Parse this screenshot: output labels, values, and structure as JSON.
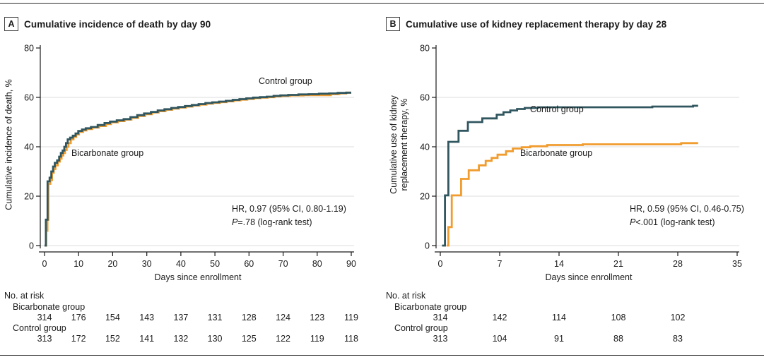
{
  "figure": {
    "colors": {
      "teal": "#30565F",
      "orange": "#F09C2E",
      "grid": "#DCDCDC",
      "axis": "#1a1a1a",
      "text": "#1a1a1a"
    }
  },
  "chart_data": [
    {
      "type": "line",
      "step": true,
      "panel_letter": "A",
      "title": "Cumulative incidence of death by day 90",
      "xlabel": "Days since enrollment",
      "ylabel": "Cumulative incidence of death, %",
      "ylabel_lines": [
        "Cumulative incidence of death, %"
      ],
      "xlim": [
        0,
        90
      ],
      "ylim": [
        0,
        80
      ],
      "xticks": [
        0,
        10,
        20,
        30,
        40,
        50,
        60,
        70,
        80,
        90
      ],
      "yticks": [
        0,
        20,
        40,
        60,
        80
      ],
      "grid_y": [
        0,
        20,
        40,
        60
      ],
      "legend_position": "inline-labels",
      "x_end": 90,
      "annotation": {
        "hr": "HR, 0.97 (95% CI, 0.80-1.19)",
        "p_italic": "P",
        "p_rest": "=.78 (log-rank test)"
      },
      "series": [
        {
          "name": "Bicarbonate group",
          "color_key": "orange",
          "points": [
            [
              0,
              0
            ],
            [
              0.5,
              6
            ],
            [
              0.85,
              10.5
            ],
            [
              1.15,
              25
            ],
            [
              1.7,
              26.5
            ],
            [
              2.2,
              29.5
            ],
            [
              2.7,
              31
            ],
            [
              3.2,
              32.5
            ],
            [
              3.9,
              34
            ],
            [
              4.5,
              35.2
            ],
            [
              5,
              36.5
            ],
            [
              5.5,
              37.5
            ],
            [
              6,
              38.7
            ],
            [
              6.5,
              40
            ],
            [
              7,
              41.5
            ],
            [
              7.7,
              43
            ],
            [
              8.5,
              44
            ],
            [
              9.3,
              45
            ],
            [
              10.1,
              46
            ],
            [
              11.3,
              46.6
            ],
            [
              12.3,
              47.2
            ],
            [
              14,
              47.8
            ],
            [
              16,
              48.4
            ],
            [
              18,
              49.2
            ],
            [
              19.5,
              49.9
            ],
            [
              21.5,
              50.4
            ],
            [
              23.5,
              51
            ],
            [
              25.5,
              51.7
            ],
            [
              27.5,
              52.5
            ],
            [
              29.5,
              53.2
            ],
            [
              31.5,
              53.9
            ],
            [
              33.5,
              54.4
            ],
            [
              35.5,
              55
            ],
            [
              37.5,
              55.5
            ],
            [
              39.5,
              55.9
            ],
            [
              41.5,
              56.3
            ],
            [
              43.5,
              56.7
            ],
            [
              45.5,
              57.1
            ],
            [
              47.5,
              57.5
            ],
            [
              49.5,
              57.8
            ],
            [
              51.5,
              58.1
            ],
            [
              53.5,
              58.4
            ],
            [
              55.5,
              58.8
            ],
            [
              57.5,
              59.1
            ],
            [
              59.5,
              59.4
            ],
            [
              61.5,
              59.7
            ],
            [
              63.5,
              59.9
            ],
            [
              65.5,
              60.1
            ],
            [
              67.5,
              60.4
            ],
            [
              69.5,
              60.6
            ],
            [
              72,
              60.8
            ],
            [
              76,
              60.9
            ],
            [
              84,
              61.3
            ],
            [
              86.5,
              61.6
            ],
            [
              88.5,
              61.9
            ]
          ]
        },
        {
          "name": "Control group",
          "color_key": "teal",
          "points": [
            [
              0,
              0
            ],
            [
              0.4,
              10.5
            ],
            [
              0.9,
              26
            ],
            [
              1.5,
              27.5
            ],
            [
              2,
              30
            ],
            [
              2.5,
              32
            ],
            [
              3,
              33.5
            ],
            [
              3.7,
              34.5
            ],
            [
              4.3,
              36
            ],
            [
              4.8,
              37.5
            ],
            [
              5.3,
              38.5
            ],
            [
              5.8,
              40
            ],
            [
              6.3,
              41.5
            ],
            [
              6.8,
              43
            ],
            [
              7.5,
              43.7
            ],
            [
              8.3,
              44.5
            ],
            [
              9.1,
              45.4
            ],
            [
              9.9,
              46.4
            ],
            [
              11,
              47
            ],
            [
              12.1,
              47.5
            ],
            [
              13.6,
              48
            ],
            [
              15.6,
              48.8
            ],
            [
              17.6,
              49.6
            ],
            [
              19.2,
              50.2
            ],
            [
              21.2,
              50.7
            ],
            [
              23.2,
              51.2
            ],
            [
              25.2,
              52
            ],
            [
              27.2,
              52.8
            ],
            [
              29.2,
              53.5
            ],
            [
              31.2,
              54.1
            ],
            [
              33.2,
              54.7
            ],
            [
              35.2,
              55.2
            ],
            [
              37.2,
              55.7
            ],
            [
              39.2,
              56.1
            ],
            [
              41.2,
              56.5
            ],
            [
              43.2,
              56.9
            ],
            [
              45.2,
              57.3
            ],
            [
              47.2,
              57.7
            ],
            [
              49.2,
              58
            ],
            [
              51.2,
              58.3
            ],
            [
              53.2,
              58.6
            ],
            [
              55.2,
              59
            ],
            [
              57.2,
              59.3
            ],
            [
              59.2,
              59.6
            ],
            [
              61.2,
              59.9
            ],
            [
              63.2,
              60.1
            ],
            [
              65.2,
              60.3
            ],
            [
              67.2,
              60.6
            ],
            [
              69.2,
              60.8
            ],
            [
              71.5,
              61
            ],
            [
              74.5,
              61.2
            ],
            [
              77.5,
              61.3
            ],
            [
              80.5,
              61.5
            ],
            [
              83.5,
              61.6
            ],
            [
              86,
              61.8
            ],
            [
              88.5,
              61.9
            ]
          ]
        }
      ],
      "at_risk": {
        "heading": "No. at risk",
        "days": [
          0,
          10,
          20,
          30,
          40,
          50,
          60,
          70,
          80,
          90
        ],
        "rows": [
          {
            "name": "Bicarbonate group",
            "values": [
              314,
              176,
              154,
              143,
              137,
              131,
              128,
              124,
              123,
              119
            ]
          },
          {
            "name": "Control group",
            "values": [
              313,
              172,
              152,
              141,
              132,
              130,
              125,
              122,
              119,
              118
            ]
          }
        ]
      }
    },
    {
      "type": "line",
      "step": true,
      "panel_letter": "B",
      "title": "Cumulative use of kidney replacement therapy by day 28",
      "xlabel": "Days since enrollment",
      "ylabel": "Cumulative use of kidney replacement therapy, %",
      "ylabel_lines": [
        "Cumulative use of kidney",
        "replacement therapy, %"
      ],
      "xlim": [
        0,
        35
      ],
      "ylim": [
        0,
        80
      ],
      "xticks": [
        0,
        7,
        14,
        21,
        28,
        35
      ],
      "yticks": [
        0,
        20,
        40,
        60,
        80
      ],
      "grid_y": [
        0,
        20,
        40,
        60
      ],
      "legend_position": "inline-labels",
      "x_end": 30.4,
      "annotation": {
        "hr": "HR, 0.59 (95% CI, 0.46-0.75)",
        "p_italic": "P",
        "p_rest": "<.001 (log-rank test)"
      },
      "series": [
        {
          "name": "Bicarbonate group",
          "color_key": "orange",
          "points": [
            [
              0.75,
              0
            ],
            [
              0.95,
              7.5
            ],
            [
              1.35,
              20.3
            ],
            [
              2.45,
              27
            ],
            [
              3.35,
              30.5
            ],
            [
              4.55,
              32.5
            ],
            [
              5.35,
              34.3
            ],
            [
              6.05,
              35.5
            ],
            [
              6.75,
              36.8
            ],
            [
              7.75,
              38.2
            ],
            [
              8.55,
              39.3
            ],
            [
              9.6,
              39.8
            ],
            [
              10.6,
              40.2
            ],
            [
              12.6,
              40.7
            ],
            [
              16.8,
              41
            ],
            [
              28.4,
              41.5
            ]
          ]
        },
        {
          "name": "Control group",
          "color_key": "teal",
          "points": [
            [
              0.2,
              0
            ],
            [
              0.55,
              20.3
            ],
            [
              0.95,
              42
            ],
            [
              2.15,
              46.5
            ],
            [
              3.25,
              50
            ],
            [
              4.95,
              51.5
            ],
            [
              6.65,
              53
            ],
            [
              7.45,
              54
            ],
            [
              8.25,
              54.7
            ],
            [
              9.05,
              55.3
            ],
            [
              9.95,
              55.7
            ],
            [
              11.5,
              56
            ],
            [
              25,
              56.3
            ],
            [
              29.8,
              56.6
            ]
          ]
        }
      ],
      "at_risk": {
        "heading": "No. at risk",
        "days": [
          0,
          7,
          14,
          21,
          28
        ],
        "rows": [
          {
            "name": "Bicarbonate group",
            "values": [
              314,
              142,
              114,
              108,
              102
            ]
          },
          {
            "name": "Control group",
            "values": [
              313,
              104,
              91,
              88,
              83
            ]
          }
        ]
      }
    }
  ]
}
